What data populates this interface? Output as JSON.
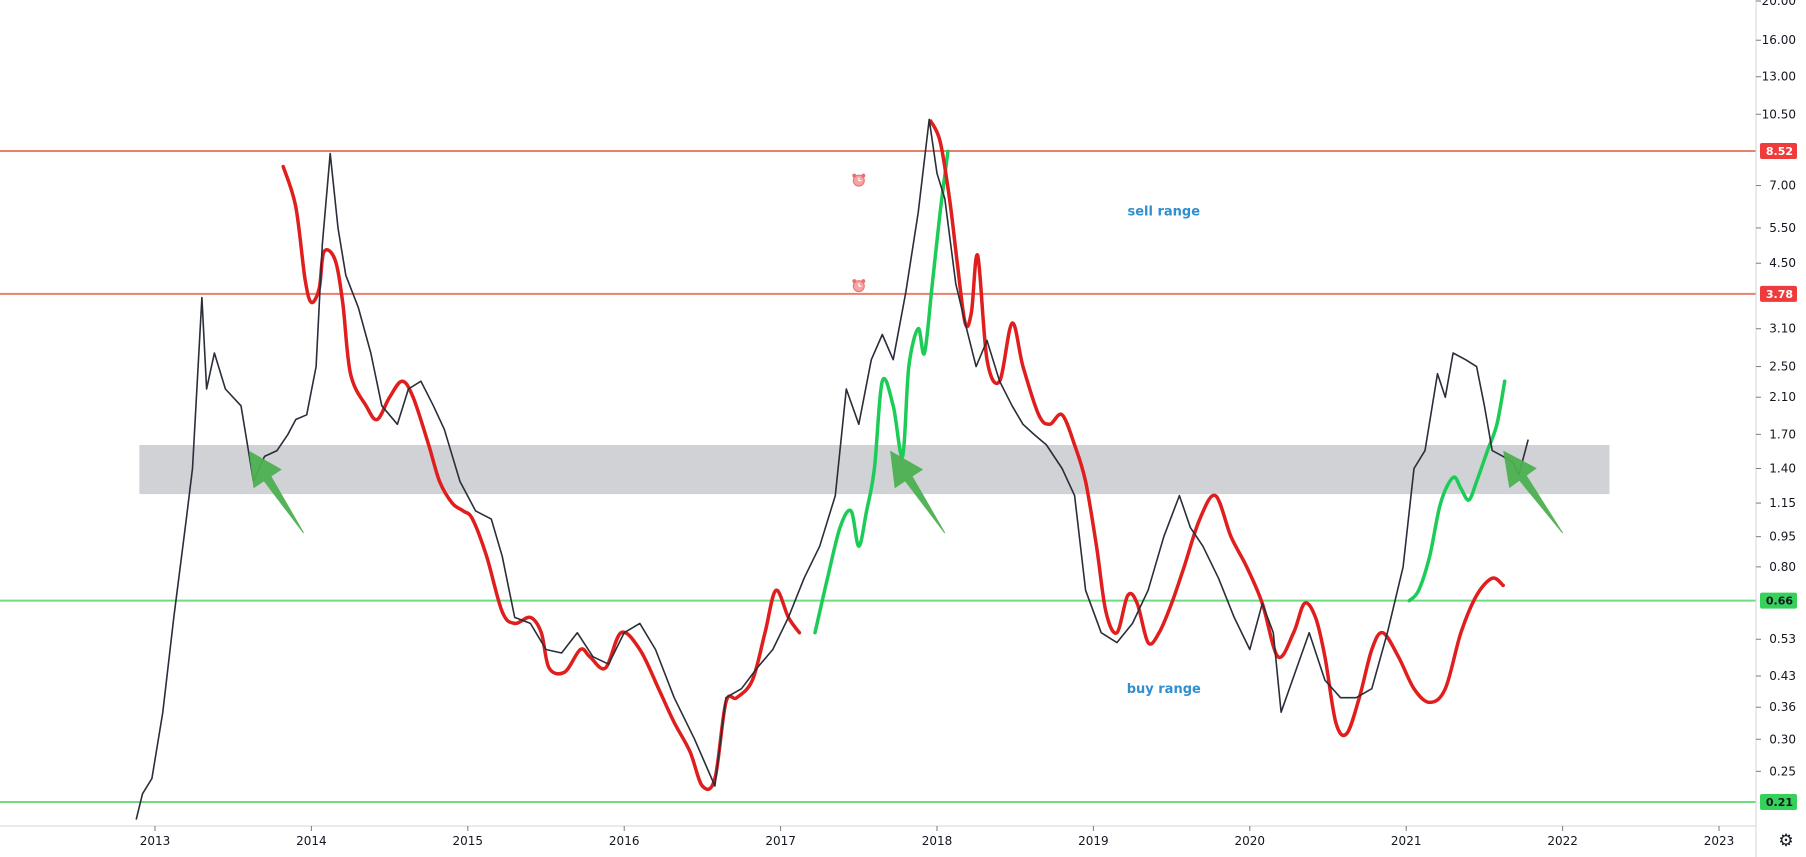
{
  "chart_data": {
    "type": "line",
    "title": "",
    "xlabel": "",
    "ylabel": "",
    "yscale": "log",
    "x_ticks": [
      "2013",
      "2014",
      "2015",
      "2016",
      "2017",
      "2018",
      "2019",
      "2020",
      "2021",
      "2022",
      "2023"
    ],
    "y_ticks": [
      "20.00",
      "16.00",
      "13.00",
      "10.50",
      "7.00",
      "5.50",
      "4.50",
      "3.10",
      "2.50",
      "2.10",
      "1.70",
      "1.40",
      "1.15",
      "0.95",
      "0.80",
      "0.53",
      "0.43",
      "0.36",
      "0.30",
      "0.25"
    ],
    "xlim": [
      2012.9,
      2023.3
    ],
    "ylim": [
      0.19,
      21.5
    ],
    "grid": false,
    "price_series": [
      [
        2012.88,
        0.19
      ],
      [
        2012.92,
        0.22
      ],
      [
        2012.98,
        0.24
      ],
      [
        2013.05,
        0.35
      ],
      [
        2013.12,
        0.6
      ],
      [
        2013.2,
        1.05
      ],
      [
        2013.24,
        1.4
      ],
      [
        2013.3,
        3.7
      ],
      [
        2013.33,
        2.2
      ],
      [
        2013.38,
        2.7
      ],
      [
        2013.45,
        2.2
      ],
      [
        2013.55,
        2.0
      ],
      [
        2013.63,
        1.3
      ],
      [
        2013.7,
        1.5
      ],
      [
        2013.78,
        1.55
      ],
      [
        2013.85,
        1.7
      ],
      [
        2013.9,
        1.85
      ],
      [
        2013.97,
        1.9
      ],
      [
        2014.03,
        2.5
      ],
      [
        2014.07,
        5.0
      ],
      [
        2014.12,
        8.4
      ],
      [
        2014.17,
        5.5
      ],
      [
        2014.22,
        4.2
      ],
      [
        2014.3,
        3.5
      ],
      [
        2014.38,
        2.7
      ],
      [
        2014.45,
        2.0
      ],
      [
        2014.55,
        1.8
      ],
      [
        2014.62,
        2.2
      ],
      [
        2014.7,
        2.3
      ],
      [
        2014.78,
        2.0
      ],
      [
        2014.85,
        1.75
      ],
      [
        2014.95,
        1.3
      ],
      [
        2015.05,
        1.1
      ],
      [
        2015.15,
        1.05
      ],
      [
        2015.22,
        0.85
      ],
      [
        2015.3,
        0.6
      ],
      [
        2015.4,
        0.58
      ],
      [
        2015.5,
        0.5
      ],
      [
        2015.6,
        0.49
      ],
      [
        2015.7,
        0.55
      ],
      [
        2015.8,
        0.48
      ],
      [
        2015.9,
        0.46
      ],
      [
        2016.0,
        0.55
      ],
      [
        2016.1,
        0.58
      ],
      [
        2016.2,
        0.5
      ],
      [
        2016.32,
        0.38
      ],
      [
        2016.45,
        0.3
      ],
      [
        2016.58,
        0.23
      ],
      [
        2016.65,
        0.38
      ],
      [
        2016.75,
        0.4
      ],
      [
        2016.85,
        0.45
      ],
      [
        2016.95,
        0.5
      ],
      [
        2017.05,
        0.6
      ],
      [
        2017.15,
        0.75
      ],
      [
        2017.25,
        0.9
      ],
      [
        2017.35,
        1.2
      ],
      [
        2017.42,
        2.2
      ],
      [
        2017.5,
        1.8
      ],
      [
        2017.58,
        2.6
      ],
      [
        2017.65,
        3.0
      ],
      [
        2017.72,
        2.6
      ],
      [
        2017.8,
        3.8
      ],
      [
        2017.88,
        6.0
      ],
      [
        2017.95,
        10.2
      ],
      [
        2018.0,
        7.5
      ],
      [
        2018.05,
        6.5
      ],
      [
        2018.12,
        4.0
      ],
      [
        2018.18,
        3.2
      ],
      [
        2018.25,
        2.5
      ],
      [
        2018.32,
        2.9
      ],
      [
        2018.4,
        2.3
      ],
      [
        2018.48,
        2.0
      ],
      [
        2018.55,
        1.8
      ],
      [
        2018.62,
        1.7
      ],
      [
        2018.7,
        1.6
      ],
      [
        2018.8,
        1.4
      ],
      [
        2018.88,
        1.2
      ],
      [
        2018.95,
        0.7
      ],
      [
        2019.05,
        0.55
      ],
      [
        2019.15,
        0.52
      ],
      [
        2019.25,
        0.58
      ],
      [
        2019.35,
        0.7
      ],
      [
        2019.45,
        0.95
      ],
      [
        2019.55,
        1.2
      ],
      [
        2019.62,
        1.0
      ],
      [
        2019.7,
        0.9
      ],
      [
        2019.8,
        0.75
      ],
      [
        2019.9,
        0.6
      ],
      [
        2020.0,
        0.5
      ],
      [
        2020.08,
        0.65
      ],
      [
        2020.15,
        0.55
      ],
      [
        2020.2,
        0.35
      ],
      [
        2020.3,
        0.45
      ],
      [
        2020.38,
        0.55
      ],
      [
        2020.48,
        0.42
      ],
      [
        2020.58,
        0.38
      ],
      [
        2020.68,
        0.38
      ],
      [
        2020.78,
        0.4
      ],
      [
        2020.88,
        0.55
      ],
      [
        2020.98,
        0.8
      ],
      [
        2021.05,
        1.4
      ],
      [
        2021.12,
        1.55
      ],
      [
        2021.2,
        2.4
      ],
      [
        2021.25,
        2.1
      ],
      [
        2021.3,
        2.7
      ],
      [
        2021.38,
        2.6
      ],
      [
        2021.45,
        2.5
      ],
      [
        2021.5,
        2.0
      ],
      [
        2021.55,
        1.55
      ],
      [
        2021.62,
        1.5
      ],
      [
        2021.68,
        1.45
      ],
      [
        2021.72,
        1.35
      ],
      [
        2021.78,
        1.65
      ]
    ],
    "overlay_segments": [
      {
        "color": "#e01e1e",
        "points": [
          [
            2013.82,
            7.8
          ],
          [
            2013.9,
            6.2
          ],
          [
            2013.96,
            4.1
          ],
          [
            2014.0,
            3.6
          ],
          [
            2014.05,
            3.9
          ],
          [
            2014.08,
            4.8
          ],
          [
            2014.15,
            4.6
          ],
          [
            2014.2,
            3.6
          ],
          [
            2014.25,
            2.4
          ],
          [
            2014.35,
            2.0
          ],
          [
            2014.42,
            1.85
          ],
          [
            2014.5,
            2.1
          ],
          [
            2014.58,
            2.3
          ],
          [
            2014.65,
            2.1
          ],
          [
            2014.75,
            1.6
          ],
          [
            2014.82,
            1.3
          ],
          [
            2014.9,
            1.15
          ],
          [
            2014.97,
            1.1
          ],
          [
            2015.03,
            1.05
          ],
          [
            2015.12,
            0.85
          ],
          [
            2015.22,
            0.62
          ],
          [
            2015.3,
            0.58
          ],
          [
            2015.4,
            0.6
          ],
          [
            2015.47,
            0.55
          ],
          [
            2015.52,
            0.45
          ],
          [
            2015.62,
            0.44
          ],
          [
            2015.72,
            0.5
          ],
          [
            2015.78,
            0.48
          ],
          [
            2015.88,
            0.45
          ],
          [
            2015.98,
            0.55
          ],
          [
            2016.1,
            0.5
          ],
          [
            2016.22,
            0.4
          ],
          [
            2016.32,
            0.33
          ],
          [
            2016.42,
            0.28
          ],
          [
            2016.5,
            0.23
          ],
          [
            2016.58,
            0.24
          ],
          [
            2016.65,
            0.37
          ],
          [
            2016.72,
            0.38
          ],
          [
            2016.82,
            0.42
          ],
          [
            2016.9,
            0.55
          ],
          [
            2016.97,
            0.7
          ],
          [
            2017.05,
            0.6
          ],
          [
            2017.12,
            0.55
          ]
        ]
      },
      {
        "color": "#1dcc57",
        "points": [
          [
            2017.22,
            0.55
          ],
          [
            2017.3,
            0.75
          ],
          [
            2017.38,
            1.0
          ],
          [
            2017.45,
            1.1
          ],
          [
            2017.5,
            0.9
          ],
          [
            2017.55,
            1.1
          ],
          [
            2017.6,
            1.4
          ],
          [
            2017.65,
            2.3
          ],
          [
            2017.72,
            2.0
          ],
          [
            2017.78,
            1.5
          ],
          [
            2017.82,
            2.5
          ],
          [
            2017.88,
            3.1
          ],
          [
            2017.92,
            2.7
          ],
          [
            2017.97,
            4.0
          ],
          [
            2018.02,
            6.0
          ],
          [
            2018.07,
            8.5
          ]
        ]
      },
      {
        "color": "#e01e1e",
        "points": [
          [
            2017.96,
            10.1
          ],
          [
            2018.02,
            9.0
          ],
          [
            2018.08,
            6.5
          ],
          [
            2018.13,
            4.5
          ],
          [
            2018.18,
            3.2
          ],
          [
            2018.22,
            3.4
          ],
          [
            2018.26,
            4.7
          ],
          [
            2018.32,
            2.6
          ],
          [
            2018.4,
            2.3
          ],
          [
            2018.48,
            3.2
          ],
          [
            2018.55,
            2.5
          ],
          [
            2018.65,
            1.9
          ],
          [
            2018.72,
            1.8
          ],
          [
            2018.8,
            1.9
          ],
          [
            2018.88,
            1.6
          ],
          [
            2018.95,
            1.3
          ],
          [
            2019.02,
            0.9
          ],
          [
            2019.08,
            0.62
          ],
          [
            2019.15,
            0.55
          ],
          [
            2019.22,
            0.68
          ],
          [
            2019.28,
            0.65
          ],
          [
            2019.35,
            0.52
          ],
          [
            2019.42,
            0.55
          ],
          [
            2019.5,
            0.65
          ],
          [
            2019.58,
            0.8
          ],
          [
            2019.68,
            1.05
          ],
          [
            2019.78,
            1.2
          ],
          [
            2019.88,
            0.95
          ],
          [
            2019.98,
            0.8
          ],
          [
            2020.08,
            0.65
          ],
          [
            2020.18,
            0.48
          ],
          [
            2020.28,
            0.55
          ],
          [
            2020.35,
            0.65
          ],
          [
            2020.42,
            0.6
          ],
          [
            2020.48,
            0.48
          ],
          [
            2020.55,
            0.33
          ],
          [
            2020.62,
            0.31
          ],
          [
            2020.7,
            0.38
          ],
          [
            2020.78,
            0.5
          ],
          [
            2020.85,
            0.55
          ],
          [
            2020.95,
            0.48
          ],
          [
            2021.05,
            0.4
          ],
          [
            2021.15,
            0.37
          ],
          [
            2021.25,
            0.4
          ],
          [
            2021.35,
            0.55
          ],
          [
            2021.45,
            0.68
          ],
          [
            2021.55,
            0.75
          ],
          [
            2021.62,
            0.72
          ]
        ]
      },
      {
        "color": "#1dcc57",
        "points": [
          [
            2021.02,
            0.66
          ],
          [
            2021.08,
            0.7
          ],
          [
            2021.15,
            0.85
          ],
          [
            2021.22,
            1.15
          ],
          [
            2021.3,
            1.33
          ],
          [
            2021.35,
            1.25
          ],
          [
            2021.4,
            1.17
          ],
          [
            2021.45,
            1.3
          ],
          [
            2021.52,
            1.55
          ],
          [
            2021.58,
            1.8
          ],
          [
            2021.63,
            2.3
          ]
        ]
      }
    ],
    "horizontal_lines": [
      {
        "value": 8.52,
        "label": "8.52",
        "color": "#e8806f"
      },
      {
        "value": 3.78,
        "label": "3.78",
        "color": "#e8806f"
      },
      {
        "value": 0.66,
        "label": "0.66",
        "color": "#6fdc82"
      },
      {
        "value": 0.21,
        "label": "0.21",
        "color": "#6fdc82"
      }
    ],
    "zone": {
      "x_start": 2012.9,
      "x_end": 2022.3,
      "y_low": 1.21,
      "y_high": 1.6,
      "color": "#c8cacf"
    },
    "arrows": [
      {
        "tail": [
          2013.95,
          0.97
        ],
        "head": [
          2013.6,
          1.55
        ],
        "color": "#4caf50"
      },
      {
        "tail": [
          2018.05,
          0.97
        ],
        "head": [
          2017.7,
          1.55
        ],
        "color": "#4caf50"
      },
      {
        "tail": [
          2022.0,
          0.97
        ],
        "head": [
          2021.62,
          1.55
        ],
        "color": "#4caf50"
      }
    ],
    "annotations": [
      {
        "text": "sell range",
        "x": 2019.45,
        "y": 5.9
      },
      {
        "text": "buy range",
        "x": 2019.45,
        "y": 0.39
      }
    ],
    "alarm_icons": [
      [
        2017.5,
        7.2
      ],
      [
        2017.5,
        3.95
      ]
    ]
  },
  "ui": {
    "settings_icon": "gear-icon"
  }
}
